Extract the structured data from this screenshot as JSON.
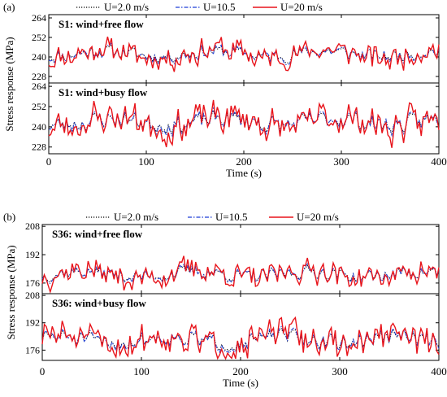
{
  "chart_data": [
    {
      "type": "line",
      "panel_label": "(a)",
      "ylabel": "Stress response (MPa)",
      "xlabel": "Time (s)",
      "xlim": [
        0,
        400
      ],
      "xticks": [
        "0",
        "100",
        "200",
        "300",
        "400"
      ],
      "legend": [
        {
          "name": "U=2.0 m/s",
          "color": "#000000",
          "style": "dotted"
        },
        {
          "name": "U=10.5",
          "color": "#1f3fd6",
          "style": "dashdot"
        },
        {
          "name": "U=20 m/s",
          "color": "#e8141b",
          "style": "solid"
        }
      ],
      "subplots": [
        {
          "title": "S1: wind+free flow",
          "ylim": [
            224,
            266
          ],
          "yticks": [
            "228",
            "240",
            "252",
            "264"
          ],
          "mean": 242,
          "amplitude": 8,
          "seed": 11
        },
        {
          "title": "S1: wind+busy flow",
          "ylim": [
            224,
            266
          ],
          "yticks": [
            "228",
            "240",
            "252",
            "264"
          ],
          "mean": 243,
          "amplitude": 10,
          "seed": 23
        }
      ]
    },
    {
      "type": "line",
      "panel_label": "(b)",
      "ylabel": "Stress response (MPa)",
      "xlabel": "Time (s)",
      "xlim": [
        0,
        400
      ],
      "xticks": [
        "0",
        "100",
        "200",
        "300",
        "400"
      ],
      "legend": [
        {
          "name": "U=2.0 m/s",
          "color": "#000000",
          "style": "dotted"
        },
        {
          "name": "U=10.5",
          "color": "#1f3fd6",
          "style": "dashdot"
        },
        {
          "name": "U=20 m/s",
          "color": "#e8141b",
          "style": "solid"
        }
      ],
      "subplots": [
        {
          "title": "S36: wind+free flow",
          "ylim": [
            170,
            209
          ],
          "yticks": [
            "176",
            "192",
            "208"
          ],
          "mean": 181,
          "amplitude": 7,
          "seed": 37
        },
        {
          "title": "S36: wind+busy flow",
          "ylim": [
            170,
            209
          ],
          "yticks": [
            "176",
            "192",
            "208"
          ],
          "mean": 182,
          "amplitude": 9,
          "seed": 51
        }
      ]
    }
  ]
}
